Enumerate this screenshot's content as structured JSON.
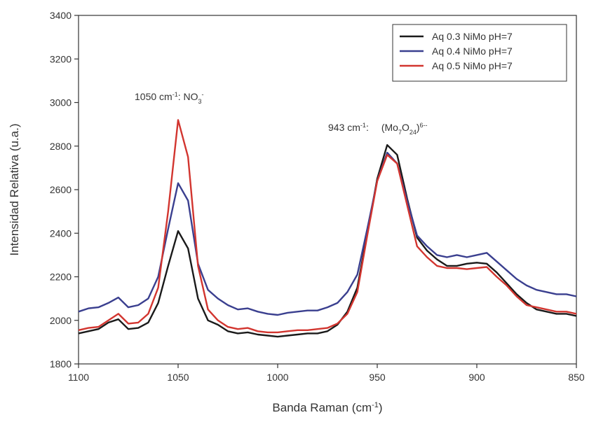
{
  "chart_data": {
    "type": "line",
    "x_label": [
      "Banda Raman (cm",
      "-1",
      ")"
    ],
    "y_label": "Intensidad Relativa (u.a.)",
    "annotations": [
      {
        "text": [
          "1050 cm",
          "-1",
          ": NO",
          "3",
          "-"
        ]
      },
      {
        "text": [
          "943 cm",
          "-1",
          ":",
          "(Mo",
          "7",
          "O",
          "24",
          ")",
          "6--"
        ]
      }
    ],
    "x": [
      1100,
      1095,
      1090,
      1085,
      1080,
      1075,
      1070,
      1065,
      1060,
      1055,
      1050,
      1045,
      1040,
      1035,
      1030,
      1025,
      1020,
      1015,
      1010,
      1005,
      1000,
      995,
      990,
      985,
      980,
      975,
      970,
      965,
      960,
      955,
      950,
      945,
      940,
      935,
      930,
      925,
      920,
      915,
      910,
      905,
      900,
      895,
      890,
      885,
      880,
      875,
      870,
      865,
      860,
      855,
      850
    ],
    "xlim": [
      1100,
      850
    ],
    "xticks": [
      1100,
      1050,
      1000,
      950,
      900,
      850
    ],
    "ylim": [
      1800,
      3400
    ],
    "yticks": [
      1800,
      2000,
      2200,
      2400,
      2600,
      2800,
      3000,
      3200,
      3400
    ],
    "grid": false,
    "legend": "upper right",
    "series": [
      {
        "name": "Aq 0.3 NiMo pH=7",
        "color": "#1a1a1a",
        "values": [
          1940,
          1950,
          1960,
          1990,
          2005,
          1960,
          1965,
          1990,
          2080,
          2250,
          2410,
          2330,
          2100,
          2000,
          1980,
          1950,
          1940,
          1945,
          1935,
          1930,
          1925,
          1930,
          1935,
          1940,
          1940,
          1950,
          1980,
          2040,
          2150,
          2400,
          2650,
          2805,
          2760,
          2560,
          2380,
          2320,
          2280,
          2250,
          2250,
          2260,
          2265,
          2260,
          2220,
          2170,
          2120,
          2080,
          2050,
          2040,
          2030,
          2030,
          2020
        ]
      },
      {
        "name": "Aq 0.4 NiMo pH=7",
        "color": "#3a3f8f",
        "values": [
          2040,
          2055,
          2060,
          2080,
          2105,
          2060,
          2070,
          2100,
          2200,
          2420,
          2630,
          2550,
          2260,
          2140,
          2100,
          2070,
          2050,
          2055,
          2040,
          2030,
          2025,
          2035,
          2040,
          2045,
          2045,
          2060,
          2080,
          2130,
          2210,
          2420,
          2640,
          2770,
          2720,
          2550,
          2390,
          2340,
          2300,
          2290,
          2300,
          2290,
          2300,
          2310,
          2270,
          2230,
          2190,
          2160,
          2140,
          2130,
          2120,
          2120,
          2110
        ]
      },
      {
        "name": "Aq 0.5 NiMo pH=7",
        "color": "#d2352f",
        "values": [
          1955,
          1965,
          1970,
          2000,
          2030,
          1985,
          1990,
          2030,
          2150,
          2500,
          2920,
          2750,
          2250,
          2050,
          2000,
          1970,
          1960,
          1965,
          1950,
          1945,
          1945,
          1950,
          1955,
          1955,
          1960,
          1965,
          1985,
          2030,
          2130,
          2390,
          2640,
          2760,
          2720,
          2530,
          2340,
          2290,
          2250,
          2240,
          2240,
          2235,
          2240,
          2245,
          2200,
          2160,
          2110,
          2070,
          2060,
          2050,
          2040,
          2040,
          2030
        ]
      }
    ]
  }
}
